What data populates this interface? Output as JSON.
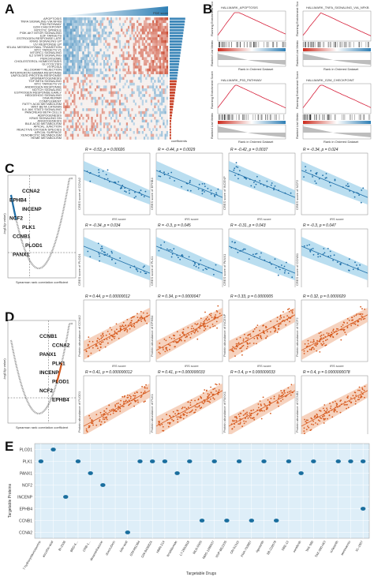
{
  "panels": {
    "A": "A",
    "B": "B",
    "C": "C",
    "D": "D",
    "E": "E"
  },
  "panelA": {
    "pde_label": "PDE score",
    "coef_label": "coefficients",
    "pathways": [
      "APOPTOSIS",
      "TNFA SIGNALING VIA NFKB",
      "P53 PATHWAY",
      "G2M CHECKPOINT",
      "MITOTIC SPINDLE",
      "PI3K AKT MTOR SIGNALING",
      "E2F TARGETS",
      "ESTROGEN RESPONSE LATE",
      "KRAS SIGNALING UP",
      "UV RESPONSE UP",
      "EPITHELIAL MESENCHYMAL TRANSITION",
      "MYC TARGETS V1",
      "MTORC1 SIGNALING",
      "IL2 STAT5 SIGNALING",
      "PEROXISOME",
      "CHOLESTEROL HOMEOSTASIS",
      "GLYCOLYSIS",
      "HYPOXIA",
      "ALLOGRAFT REJECTION",
      "INTERFERON GAMMA RESPONSE",
      "UNFOLDED PROTEIN RESPONSE",
      "SPERMATOGENESIS",
      "TGF BETA SIGNALING",
      "MYC TARGETS V2",
      "ANDROGEN RESPONSE",
      "NOTCH SIGNALING",
      "ESTROGEN RESPONSE EARLY",
      "HEDGEHOG SIGNALING",
      "DNA REPAIR",
      "COMPLEMENT",
      "FATTY ACID METABOLISM",
      "WNT BETA CATENIN",
      "IL6 JAK STAT3 SIGNALING",
      "PANCREAS BETA CELLS",
      "ADIPOGENESIS",
      "KRAS SIGNALING DN",
      "ANGIOGENESIS",
      "BILE ACID METABOLISM",
      "APICAL JUNCTION",
      "REACTIVE OXYGEN SPECIES",
      "APICAL SURFACE",
      "XENOBIOTIC METABOLISM",
      "HEME METABOLISM"
    ]
  },
  "panelB": {
    "plots": [
      {
        "title": "HALLMARK_APOPTOSIS",
        "ylabel": "Running Enrichment Score",
        "ylabel2": "Ranked List Metric",
        "xlabel": "Rank in Ordered Dataset"
      },
      {
        "title": "HALLMARK_TNFA_SIGNALING_VIA_NFKB",
        "ylabel": "Running Enrichment Score",
        "ylabel2": "Ranked List Metric",
        "xlabel": "Rank in Ordered Dataset"
      },
      {
        "title": "HALLMARK_P53_PATHWAY",
        "ylabel": "Running Enrichment Score",
        "ylabel2": "Ranked List Metric",
        "xlabel": "Rank in Ordered Dataset"
      },
      {
        "title": "HALLMARK_G2M_CHECKPOINT",
        "ylabel": "Running Enrichment Score",
        "ylabel2": "Ranked List Metric",
        "xlabel": "Rank in Ordered Dataset"
      }
    ]
  },
  "panelC": {
    "volcano": {
      "xlabel": "Spearman rank correlation coefficient",
      "ylabel": "-log10(p value)",
      "genes": [
        "CCNA2",
        "EPHB4",
        "INCENP",
        "NCF2",
        "PLK1",
        "CCNB1",
        "PLOD1",
        "PANX1"
      ]
    },
    "scatters": [
      {
        "stat": "R = -0.53, p = 0.00026",
        "ylabel": "CRES score of CCNA2",
        "xlabel": "IRS score"
      },
      {
        "stat": "R = -0.44, p = 0.0029",
        "ylabel": "CRES score of EPHB4",
        "xlabel": "IRS score"
      },
      {
        "stat": "R = -0.42, p = 0.0037",
        "ylabel": "CRES score of INCENP",
        "xlabel": "IRS score"
      },
      {
        "stat": "R = -0.34, p = 0.024",
        "ylabel": "CRES score of NCF2",
        "xlabel": "IRS score"
      },
      {
        "stat": "R = -0.34, p = 0.034",
        "ylabel": "CRES score of PLOD1",
        "xlabel": "IRS score"
      },
      {
        "stat": "R = -0.3, p = 0.045",
        "ylabel": "CRES score of PLK1",
        "xlabel": "IRS score"
      },
      {
        "stat": "R = -0.31, p = 0.043",
        "ylabel": "CRES score of PANX1",
        "xlabel": "IRS score"
      },
      {
        "stat": "R = -0.3, p = 0.047",
        "ylabel": "CRES score of CCNB1",
        "xlabel": "IRS score"
      }
    ]
  },
  "panelD": {
    "volcano": {
      "xlabel": "Spearman rank correlation coefficient",
      "ylabel": "-log10(p value)",
      "genes": [
        "CCNB1",
        "CCNA2",
        "PANX1",
        "PLK1",
        "INCENP",
        "PLOD1",
        "NCF2",
        "EPHB4"
      ]
    },
    "scatters": [
      {
        "stat": "R = 0.44, p = 0.00000012",
        "ylabel": "Protein abundance of CCNA2",
        "xlabel": "IRS score"
      },
      {
        "stat": "R = 0.34, p = 0.0000047",
        "ylabel": "Protein abundance of EPHB4",
        "xlabel": "IRS score"
      },
      {
        "stat": "R = 0.33, p = 0.0000005",
        "ylabel": "Protein abundance of INCENP",
        "xlabel": "IRS score"
      },
      {
        "stat": "R = 0.32, p = 0.0000029",
        "ylabel": "Protein abundance of NCF2",
        "xlabel": "IRS score"
      },
      {
        "stat": "R = 0.41, p = 0.000000012",
        "ylabel": "Protein abundance of PLOD1",
        "xlabel": "IRS score"
      },
      {
        "stat": "R = 0.41, p = 0.000000033",
        "ylabel": "Protein abundance of PLK1",
        "xlabel": "IRS score"
      },
      {
        "stat": "R = 0.4, p = 0.000000033",
        "ylabel": "Protein abundance of PANX1",
        "xlabel": "IRS score"
      },
      {
        "stat": "R = 0.4, p = 0.0000000078",
        "ylabel": "Protein abundance of CCNB1",
        "xlabel": "IRS score"
      }
    ]
  },
  "panelE": {
    "xlabel": "Targetable Drugs",
    "ylabel": "Targetable Proteins",
    "proteins": [
      "PLOD1",
      "PLK1",
      "PANX1",
      "NCF2",
      "INCENP",
      "EPHB4",
      "CCNB1",
      "CCNA2"
    ],
    "drugs": [
      "7-hydroxystaurosporine",
      "ascorbic-acid",
      "BI-2536",
      "BRD-K...",
      "CRB-1...",
      "dexamethasone",
      "doxorubicin",
      "folic-acid",
      "GSK461364",
      "GW-843682X",
      "HMN-214",
      "lenalidomide",
      "LY-2603618",
      "MLN-0905",
      "NMS-1286937",
      "NVP-BEZ235",
      "ON-01910",
      "PHA-793887",
      "rigosertib",
      "SB-218078",
      "SBE-13",
      "sorafenib",
      "TAK-960",
      "TAK-960-HCl",
      "volasertib",
      "wortmannin",
      "XL-1607"
    ],
    "color_dot": "#1a6e9e",
    "bg": "#deeef8"
  },
  "colors": {
    "blue_scatter": "#1f6fa8",
    "blue_band": "#a9d6ec",
    "orange_scatter": "#d65a1e",
    "orange_band": "#f4c7ae",
    "heat_red": "#c9442a",
    "heat_blue": "#3c86b8"
  }
}
